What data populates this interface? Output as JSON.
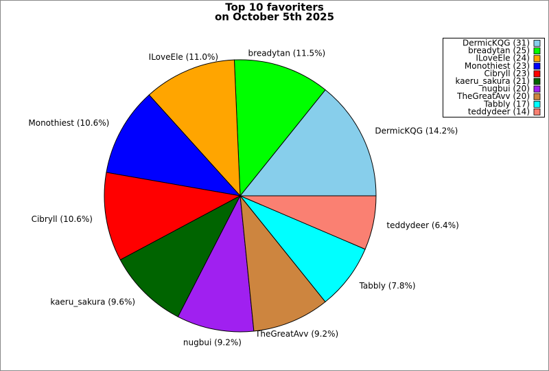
{
  "chart_data": {
    "type": "pie",
    "title": [
      "Top 10 favoriters",
      "on October 5th 2025"
    ],
    "categories": [
      "DermicKQG",
      "breadytan",
      "ILoveEle",
      "Monothiest",
      "Cibryll",
      "kaeru_sakura",
      "nugbui",
      "TheGreatAvv",
      "Tabbly",
      "teddydeer"
    ],
    "values": [
      31,
      25,
      24,
      23,
      23,
      21,
      20,
      20,
      17,
      14
    ],
    "value_labels": [
      "DermicKQG (14.2%)",
      "breadytan (11.5%)",
      "ILoveEle (11.0%)",
      "Monothiest (10.6%)",
      "Cibryll (10.6%)",
      "kaeru_sakura (9.6%)",
      "nugbui (9.2%)",
      "TheGreatAvv (9.2%)",
      "Tabbly (7.8%)",
      "teddydeer (6.4%)"
    ],
    "legend_labels": [
      "DermicKQG (31)",
      "breadytan (25)",
      "ILoveEle (24)",
      "Monothiest (23)",
      "Cibryll (23)",
      "kaeru_sakura (21)",
      "nugbui (20)",
      "TheGreatAvv (20)",
      "Tabbly (17)",
      "teddydeer (14)"
    ],
    "colors": [
      "#87ceeb",
      "#00ff00",
      "#ffa500",
      "#0000ff",
      "#ff0000",
      "#006400",
      "#a020f0",
      "#cd853f",
      "#00ffff",
      "#fa8072"
    ],
    "legend": "upper right"
  }
}
